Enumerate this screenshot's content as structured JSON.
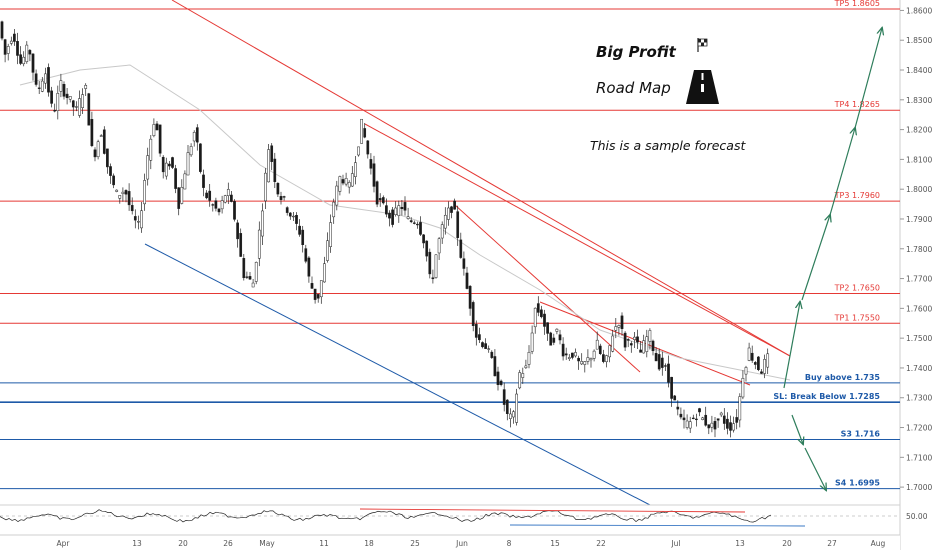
{
  "chart_data": {
    "type": "candlestick",
    "price_axis": {
      "range": [
        1.694,
        1.8635
      ],
      "ticks": [
        "1.86000",
        "1.85000",
        "1.84000",
        "1.83000",
        "1.82000",
        "1.81000",
        "1.80000",
        "1.79000",
        "1.78000",
        "1.77000",
        "1.76000",
        "1.75000",
        "1.74000",
        "1.73000",
        "1.72000",
        "1.71000",
        "1.70000"
      ],
      "tick_values": [
        1.86,
        1.85,
        1.84,
        1.83,
        1.82,
        1.81,
        1.8,
        1.79,
        1.78,
        1.77,
        1.76,
        1.75,
        1.74,
        1.73,
        1.72,
        1.71,
        1.7
      ]
    },
    "time_axis": {
      "labels": [
        "Apr",
        "13",
        "20",
        "26",
        "May",
        "11",
        "18",
        "25",
        "Jun",
        "8",
        "15",
        "22",
        "Jul",
        "13",
        "20",
        "27",
        "Aug"
      ]
    },
    "levels": [
      {
        "label": "TP5 1.8605",
        "value": 1.8605,
        "color": "#e53935"
      },
      {
        "label": "TP4 1.8265",
        "value": 1.8265,
        "color": "#e53935"
      },
      {
        "label": "TP3 1.7960",
        "value": 1.796,
        "color": "#e53935"
      },
      {
        "label": "TP2 1.7650",
        "value": 1.765,
        "color": "#e53935"
      },
      {
        "label": "TP1 1.7550",
        "value": 1.755,
        "color": "#e53935"
      },
      {
        "label": "Buy above 1.735",
        "value": 1.735,
        "color": "#1e5aa8"
      },
      {
        "label": "SL: Break Below 1.7285",
        "value": 1.7285,
        "color": "#1e5aa8"
      },
      {
        "label": "S3 1.716",
        "value": 1.716,
        "color": "#1e5aa8"
      },
      {
        "label": "S4 1.6995",
        "value": 1.6995,
        "color": "#1e5aa8"
      }
    ],
    "trend_points": [
      [
        0,
        1.86
      ],
      [
        8,
        1.845
      ],
      [
        16,
        1.853
      ],
      [
        24,
        1.842
      ],
      [
        32,
        1.848
      ],
      [
        40,
        1.832
      ],
      [
        48,
        1.84
      ],
      [
        56,
        1.825
      ],
      [
        64,
        1.835
      ],
      [
        72,
        1.83
      ],
      [
        80,
        1.826
      ],
      [
        88,
        1.836
      ],
      [
        96,
        1.81
      ],
      [
        104,
        1.82
      ],
      [
        112,
        1.805
      ],
      [
        120,
        1.798
      ],
      [
        128,
        1.8
      ],
      [
        136,
        1.79
      ],
      [
        142,
        1.787
      ],
      [
        150,
        1.81
      ],
      [
        158,
        1.825
      ],
      [
        166,
        1.805
      ],
      [
        174,
        1.81
      ],
      [
        182,
        1.795
      ],
      [
        190,
        1.81
      ],
      [
        198,
        1.82
      ],
      [
        206,
        1.8
      ],
      [
        214,
        1.795
      ],
      [
        222,
        1.792
      ],
      [
        230,
        1.8
      ],
      [
        238,
        1.79
      ],
      [
        246,
        1.772
      ],
      [
        256,
        1.768
      ],
      [
        264,
        1.79
      ],
      [
        272,
        1.815
      ],
      [
        280,
        1.8
      ],
      [
        288,
        1.795
      ],
      [
        296,
        1.79
      ],
      [
        304,
        1.785
      ],
      [
        312,
        1.77
      ],
      [
        320,
        1.762
      ],
      [
        328,
        1.775
      ],
      [
        336,
        1.795
      ],
      [
        344,
        1.805
      ],
      [
        352,
        1.8
      ],
      [
        358,
        1.81
      ],
      [
        365,
        1.822
      ],
      [
        372,
        1.81
      ],
      [
        380,
        1.797
      ],
      [
        388,
        1.793
      ],
      [
        396,
        1.79
      ],
      [
        404,
        1.795
      ],
      [
        412,
        1.789
      ],
      [
        420,
        1.79
      ],
      [
        428,
        1.782
      ],
      [
        434,
        1.767
      ],
      [
        440,
        1.78
      ],
      [
        448,
        1.79
      ],
      [
        456,
        1.795
      ],
      [
        462,
        1.782
      ],
      [
        468,
        1.77
      ],
      [
        474,
        1.76
      ],
      [
        480,
        1.75
      ],
      [
        488,
        1.748
      ],
      [
        496,
        1.741
      ],
      [
        504,
        1.733
      ],
      [
        510,
        1.724
      ],
      [
        516,
        1.722
      ],
      [
        522,
        1.738
      ],
      [
        530,
        1.74
      ],
      [
        538,
        1.76
      ],
      [
        545,
        1.758
      ],
      [
        552,
        1.748
      ],
      [
        560,
        1.752
      ],
      [
        568,
        1.744
      ],
      [
        576,
        1.745
      ],
      [
        584,
        1.74
      ],
      [
        592,
        1.743
      ],
      [
        600,
        1.748
      ],
      [
        608,
        1.74
      ],
      [
        616,
        1.752
      ],
      [
        622,
        1.756
      ],
      [
        628,
        1.748
      ],
      [
        636,
        1.75
      ],
      [
        644,
        1.745
      ],
      [
        652,
        1.752
      ],
      [
        660,
        1.742
      ],
      [
        668,
        1.74
      ],
      [
        676,
        1.73
      ],
      [
        684,
        1.722
      ],
      [
        692,
        1.721
      ],
      [
        700,
        1.725
      ],
      [
        708,
        1.722
      ],
      [
        716,
        1.72
      ],
      [
        724,
        1.724
      ],
      [
        732,
        1.72
      ],
      [
        740,
        1.723
      ],
      [
        746,
        1.738
      ],
      [
        752,
        1.746
      ],
      [
        758,
        1.742
      ],
      [
        764,
        1.739
      ],
      [
        770,
        1.743
      ]
    ],
    "annotations": {
      "title": "Big Profit",
      "subtitle": "Road Map",
      "note": "This is a sample forecast"
    },
    "indicator": {
      "levels": [
        "50.00"
      ]
    },
    "colors": {
      "bull": "#ffffff",
      "bear": "#1a1a1a",
      "resistance": "#e53935",
      "support": "#1e5aa8",
      "arrow": "#2e7d5b"
    }
  }
}
